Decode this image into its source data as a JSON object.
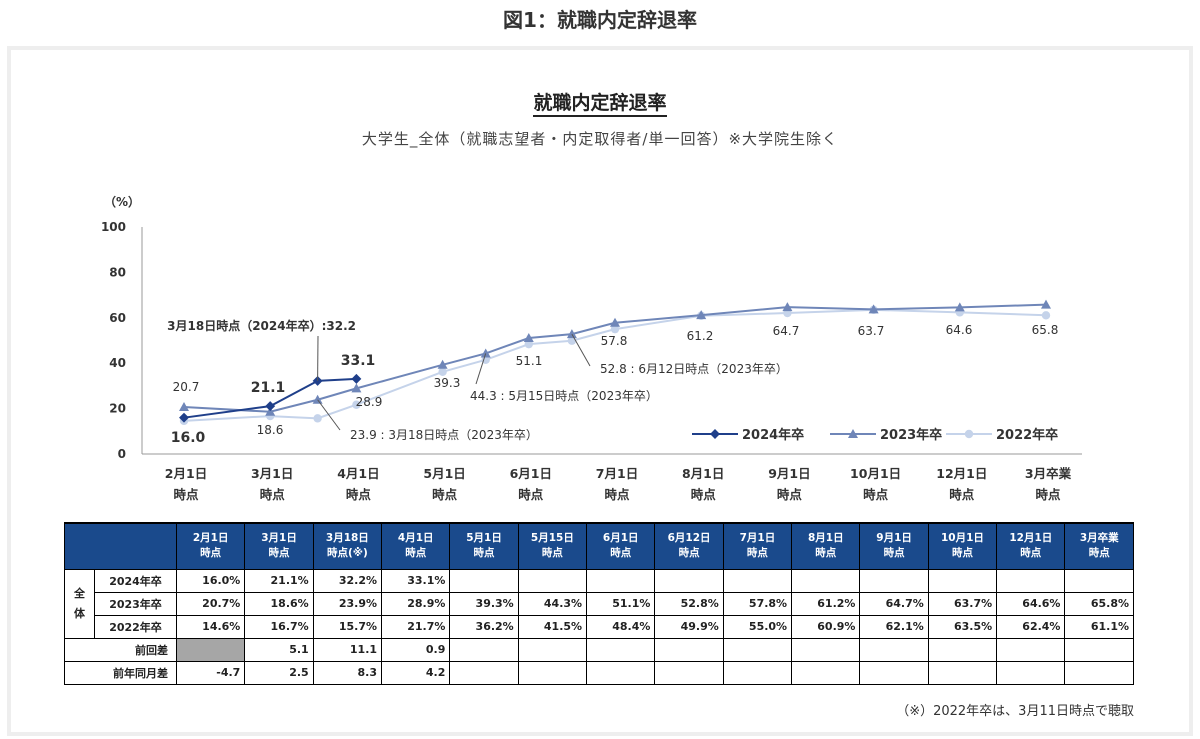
{
  "figure_caption": "図1：就職内定辞退率",
  "chart_data": {
    "type": "line",
    "title": "就職内定辞退率",
    "subtitle": "大学生_全体（就職志望者・内定取得者/単一回答）※大学院生除く",
    "ylabel": "（%）",
    "ylim": [
      0,
      100
    ],
    "yticks": [
      "0",
      "20",
      "40",
      "60",
      "80",
      "100"
    ],
    "x_labels": [
      [
        "2月1日",
        "時点"
      ],
      [
        "3月1日",
        "時点"
      ],
      [
        "4月1日",
        "時点"
      ],
      [
        "5月1日",
        "時点"
      ],
      [
        "6月1日",
        "時点"
      ],
      [
        "7月1日",
        "時点"
      ],
      [
        "8月1日",
        "時点"
      ],
      [
        "9月1日",
        "時点"
      ],
      [
        "10月1日",
        "時点"
      ],
      [
        "12月1日",
        "時点"
      ],
      [
        "3月卒業",
        "時点"
      ]
    ],
    "series": [
      {
        "name": "2024年卒",
        "color": "#1f3f8a",
        "points": [
          [
            0,
            16.0
          ],
          [
            1,
            21.1
          ],
          [
            1.55,
            32.2
          ],
          [
            2,
            33.1
          ]
        ]
      },
      {
        "name": "2023年卒",
        "color": "#6f86b8",
        "points": [
          [
            0,
            20.7
          ],
          [
            1,
            18.6
          ],
          [
            1.55,
            23.9
          ],
          [
            2,
            28.9
          ],
          [
            3,
            39.3
          ],
          [
            3.5,
            44.3
          ],
          [
            4,
            51.1
          ],
          [
            4.5,
            52.8
          ],
          [
            5,
            57.8
          ],
          [
            6,
            61.2
          ],
          [
            7,
            64.7
          ],
          [
            8,
            63.7
          ],
          [
            9,
            64.6
          ],
          [
            10,
            65.8
          ]
        ]
      },
      {
        "name": "2022年卒",
        "color": "#c5d3ea",
        "points": [
          [
            0,
            14.6
          ],
          [
            1,
            16.7
          ],
          [
            1.55,
            15.7
          ],
          [
            2,
            21.7
          ],
          [
            3,
            36.2
          ],
          [
            3.5,
            41.5
          ],
          [
            4,
            48.4
          ],
          [
            4.5,
            49.9
          ],
          [
            5,
            55.0
          ],
          [
            6,
            60.9
          ],
          [
            7,
            62.1
          ],
          [
            8,
            63.5
          ],
          [
            9,
            62.4
          ],
          [
            10,
            61.1
          ]
        ]
      }
    ],
    "labels": {
      "l2024_0": "16.0",
      "l2024_1": "21.1",
      "l2024_318": "3月18日時点（2024年卒）:32.2",
      "l2024_2": "33.1",
      "l2023_0": "20.7",
      "l2023_1": "18.6",
      "l2023_318": "23.9 : 3月18日時点（2023年卒）",
      "l2023_2": "28.9",
      "l2023_3": "39.3",
      "l2023_515": "44.3 : 5月15日時点（2023年卒）",
      "l2023_4": "51.1",
      "l2023_612": "52.8 : 6月12日時点（2023年卒）",
      "l2023_5": "57.8",
      "l2023_6": "61.2",
      "l2023_7": "64.7",
      "l2023_8": "63.7",
      "l2023_9": "64.6",
      "l2023_10": "65.8"
    },
    "legend": [
      "2024年卒",
      "2023年卒",
      "2022年卒"
    ],
    "legend_position": "bottom-right"
  },
  "table": {
    "headers": [
      [
        "2月1日",
        "時点"
      ],
      [
        "3月1日",
        "時点"
      ],
      [
        "3月18日",
        "時点(※)"
      ],
      [
        "4月1日",
        "時点"
      ],
      [
        "5月1日",
        "時点"
      ],
      [
        "5月15日",
        "時点"
      ],
      [
        "6月1日",
        "時点"
      ],
      [
        "6月12日",
        "時点"
      ],
      [
        "7月1日",
        "時点"
      ],
      [
        "8月1日",
        "時点"
      ],
      [
        "9月1日",
        "時点"
      ],
      [
        "10月1日",
        "時点"
      ],
      [
        "12月1日",
        "時点"
      ],
      [
        "3月卒業",
        "時点"
      ]
    ],
    "group_label": [
      "全",
      "体"
    ],
    "rows": [
      {
        "label": "2024年卒",
        "values": [
          "16.0%",
          "21.1%",
          "32.2%",
          "33.1%",
          "",
          "",
          "",
          "",
          "",
          "",
          "",
          "",
          "",
          ""
        ]
      },
      {
        "label": "2023年卒",
        "values": [
          "20.7%",
          "18.6%",
          "23.9%",
          "28.9%",
          "39.3%",
          "44.3%",
          "51.1%",
          "52.8%",
          "57.8%",
          "61.2%",
          "64.7%",
          "63.7%",
          "64.6%",
          "65.8%"
        ]
      },
      {
        "label": "2022年卒",
        "values": [
          "14.6%",
          "16.7%",
          "15.7%",
          "21.7%",
          "36.2%",
          "41.5%",
          "48.4%",
          "49.9%",
          "55.0%",
          "60.9%",
          "62.1%",
          "63.5%",
          "62.4%",
          "61.1%"
        ]
      }
    ],
    "diff_rows": [
      {
        "label": "前回差",
        "values": [
          "",
          "5.1",
          "11.1",
          "0.9",
          "",
          "",
          "",
          "",
          "",
          "",
          "",
          "",
          "",
          ""
        ]
      },
      {
        "label": "前年同月差",
        "values": [
          "-4.7",
          "2.5",
          "8.3",
          "4.2",
          "",
          "",
          "",
          "",
          "",
          "",
          "",
          "",
          "",
          ""
        ]
      }
    ]
  },
  "footnote": "（※）2022年卒は、3月11日時点で聴取"
}
